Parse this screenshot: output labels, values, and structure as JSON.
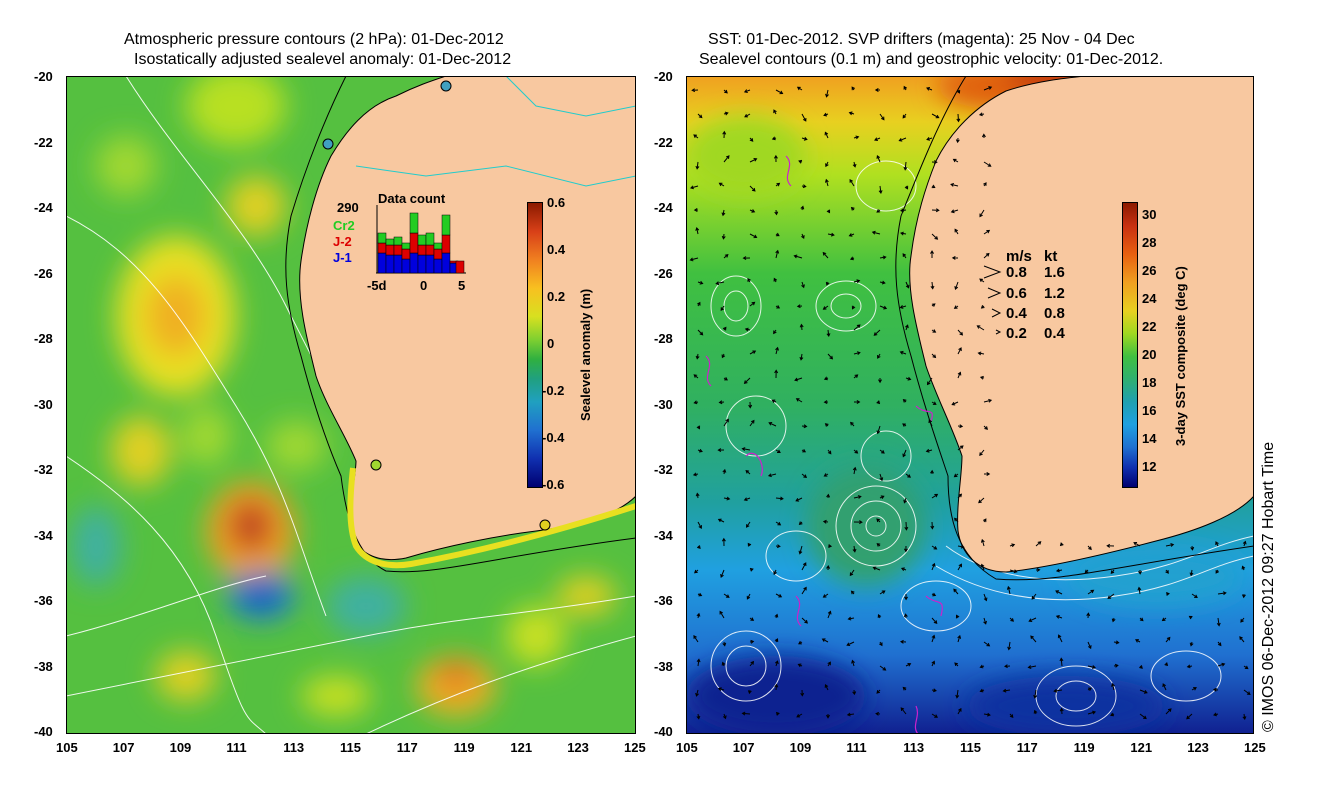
{
  "left_panel": {
    "title_line1": "Atmospheric pressure contours (2 hPa): 01-Dec-2012",
    "title_line2": "Isostatically adjusted sealevel anomaly: 01-Dec-2012",
    "y_ticks": [
      "-20",
      "-22",
      "-24",
      "-26",
      "-28",
      "-30",
      "-32",
      "-34",
      "-36",
      "-38",
      "-40"
    ],
    "x_ticks": [
      "105",
      "107",
      "109",
      "111",
      "113",
      "115",
      "117",
      "119",
      "121",
      "123",
      "125"
    ],
    "colorbar": {
      "label": "Sealevel anomaly (m)",
      "ticks": [
        "0.6",
        "0.4",
        "0.2",
        "0",
        "-0.2",
        "-0.4",
        "-0.6"
      ]
    },
    "inset": {
      "title": "Data count",
      "max_label": "290",
      "legend": [
        {
          "label": "Cr2",
          "color": "#22cc22"
        },
        {
          "label": "J-2",
          "color": "#dd0000"
        },
        {
          "label": "J-1",
          "color": "#0000dd"
        }
      ],
      "x_ticks": [
        "-5d",
        "0",
        "5"
      ]
    }
  },
  "right_panel": {
    "title_line1": "SST: 01-Dec-2012. SVP drifters (magenta): 25 Nov - 04 Dec",
    "title_line2": "Sealevel contours (0.1 m) and geostrophic velocity: 01-Dec-2012.",
    "y_ticks": [
      "-20",
      "-22",
      "-24",
      "-26",
      "-28",
      "-30",
      "-32",
      "-34",
      "-36",
      "-38",
      "-40"
    ],
    "x_ticks": [
      "105",
      "107",
      "109",
      "111",
      "113",
      "115",
      "117",
      "119",
      "121",
      "123",
      "125"
    ],
    "colorbar": {
      "label": "3-day SST composite (deg C)",
      "ticks": [
        "30",
        "28",
        "26",
        "24",
        "22",
        "20",
        "18",
        "16",
        "14",
        "12"
      ]
    },
    "velocity_legend": {
      "header_ms": "m/s",
      "header_kt": "kt",
      "rows": [
        {
          "ms": "0.8",
          "kt": "1.6"
        },
        {
          "ms": "0.6",
          "kt": "1.2"
        },
        {
          "ms": "0.4",
          "kt": "0.8"
        },
        {
          "ms": "0.2",
          "kt": "0.4"
        }
      ]
    }
  },
  "credit": "© IMOS 06-Dec-2012 09:27 Hobart Time",
  "colors": {
    "land": "#f8c8a0",
    "coast_line": "#000000",
    "river": "#22cccc",
    "drifter": "#cc22cc"
  }
}
